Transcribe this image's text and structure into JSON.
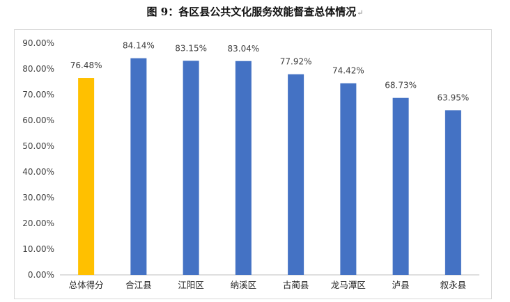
{
  "figure": {
    "title": "图 9：各区县公共文化服务效能督查总体情况",
    "return_mark": "↵"
  },
  "chart_data": {
    "type": "bar",
    "title": "图 9：各区县公共文化服务效能督查总体情况",
    "xlabel": "",
    "ylabel": "",
    "categories": [
      "总体得分",
      "合江县",
      "江阳区",
      "纳溪区",
      "古蔺县",
      "龙马潭区",
      "泸县",
      "叙永县"
    ],
    "values": [
      76.48,
      84.14,
      83.15,
      83.04,
      77.92,
      74.42,
      68.73,
      63.95
    ],
    "data_labels": [
      "76.48%",
      "84.14%",
      "83.15%",
      "83.04%",
      "77.92%",
      "74.42%",
      "68.73%",
      "63.95%"
    ],
    "ylim": [
      0,
      90
    ],
    "yticks": [
      0,
      10,
      20,
      30,
      40,
      50,
      60,
      70,
      80,
      90
    ],
    "ytick_labels": [
      "0.00%",
      "10.00%",
      "20.00%",
      "30.00%",
      "40.00%",
      "50.00%",
      "60.00%",
      "70.00%",
      "80.00%",
      "90.00%"
    ],
    "grid": false,
    "legend": "none",
    "colors": {
      "highlight": "#FFC000",
      "default": "#4472C4",
      "axis": "#bfbfbf"
    },
    "highlight_index": 0
  }
}
